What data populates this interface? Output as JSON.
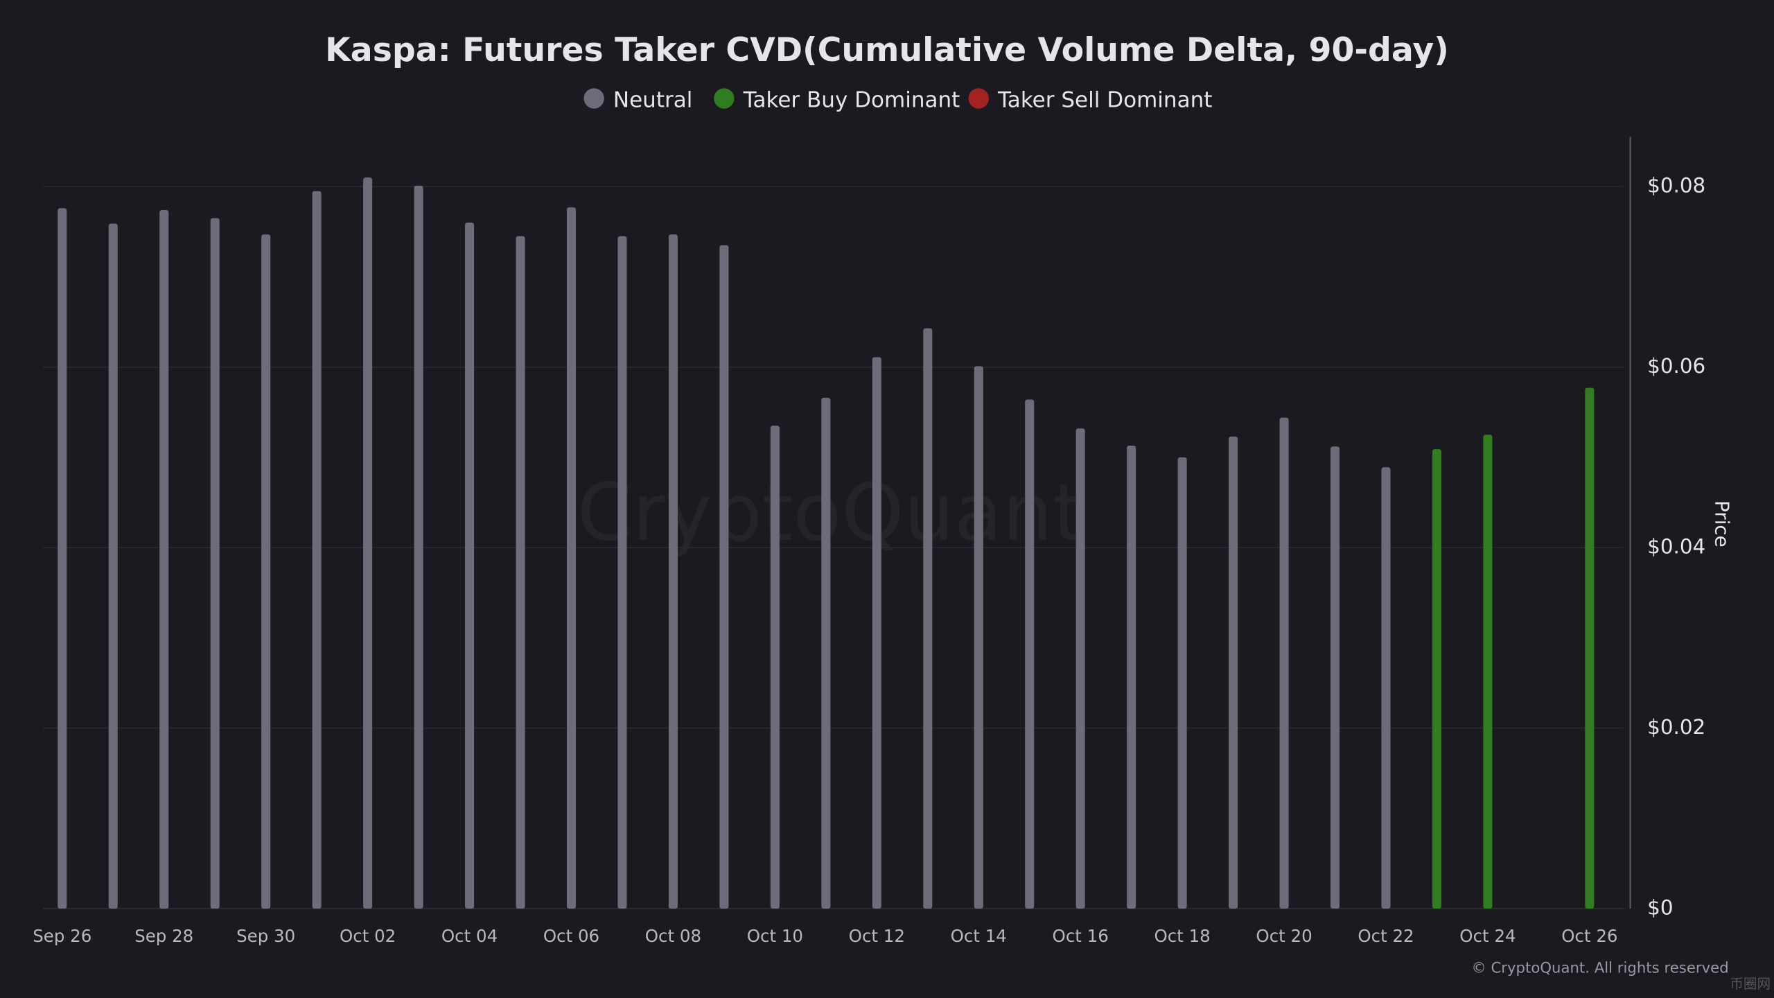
{
  "chart_data": {
    "type": "bar",
    "title": "Kaspa: Futures Taker CVD(Cumulative Volume Delta, 90-day)",
    "y_axis_label": "Price",
    "watermark": "CryptoQuant",
    "footer": "© CryptoQuant. All rights reserved",
    "corner_logo": "币圈网",
    "categories": [
      "Sep 26",
      null,
      "Sep 28",
      null,
      "Sep 30",
      null,
      "Oct 02",
      null,
      "Oct 04",
      null,
      "Oct 06",
      null,
      "Oct 08",
      null,
      "Oct 10",
      null,
      "Oct 12",
      null,
      "Oct 14",
      null,
      "Oct 16",
      null,
      "Oct 18",
      null,
      "Oct 20",
      null,
      "Oct 22",
      null,
      "Oct 24",
      null,
      "Oct 26"
    ],
    "series": [
      {
        "name": "Neutral",
        "color": "#6f6b7b",
        "values": [
          0.0776,
          0.0759,
          0.0774,
          0.0765,
          0.0747,
          0.0795,
          0.081,
          0.0801,
          0.076,
          0.0745,
          0.0777,
          0.0745,
          0.0747,
          0.0735,
          0.0535,
          0.0566,
          0.0611,
          0.0643,
          0.0601,
          0.0564,
          0.0532,
          0.0513,
          0.05,
          0.0523,
          0.0544,
          0.0512,
          0.0489,
          null,
          null,
          null,
          null
        ]
      },
      {
        "name": "Taker Buy Dominant",
        "color": "#2f7d1f",
        "values": [
          null,
          null,
          null,
          null,
          null,
          null,
          null,
          null,
          null,
          null,
          null,
          null,
          null,
          null,
          null,
          null,
          null,
          null,
          null,
          null,
          null,
          null,
          null,
          null,
          null,
          null,
          null,
          0.0509,
          0.0525,
          null,
          0.0577
        ]
      },
      {
        "name": "Taker Sell Dominant",
        "color": "#a32222",
        "values": [
          null,
          null,
          null,
          null,
          null,
          null,
          null,
          null,
          null,
          null,
          null,
          null,
          null,
          null,
          null,
          null,
          null,
          null,
          null,
          null,
          null,
          null,
          null,
          null,
          null,
          null,
          null,
          null,
          null,
          null,
          null
        ]
      }
    ],
    "ylim": [
      0,
      0.0855
    ],
    "yticks": [
      {
        "value": 0,
        "label": "$0"
      },
      {
        "value": 0.02,
        "label": "$0.02"
      },
      {
        "value": 0.04,
        "label": "$0.04"
      },
      {
        "value": 0.06,
        "label": "$0.06"
      },
      {
        "value": 0.08,
        "label": "$0.08"
      }
    ],
    "grid": true
  }
}
